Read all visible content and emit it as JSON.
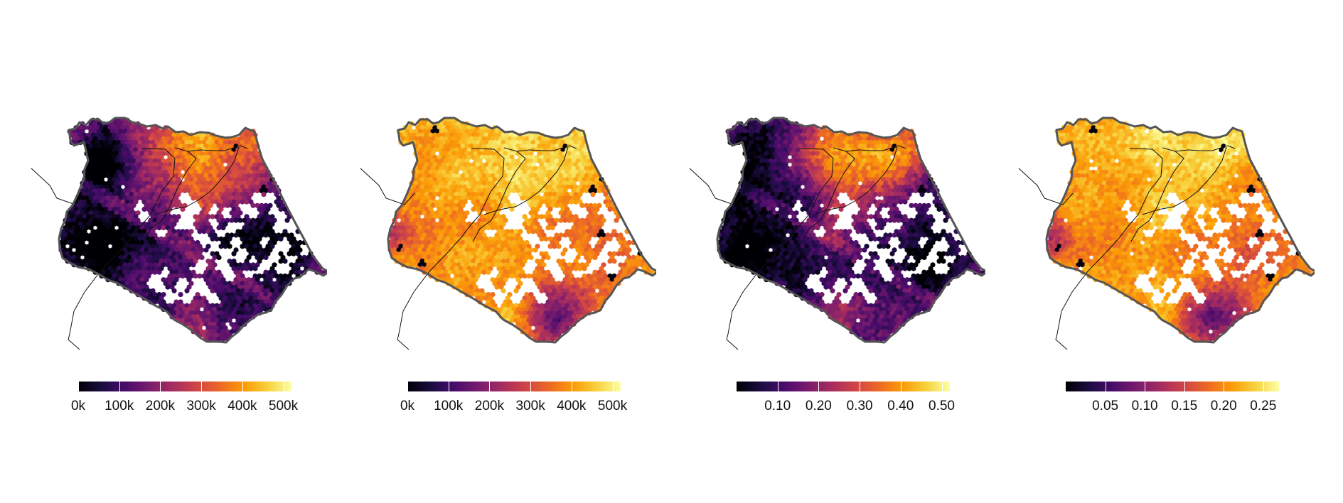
{
  "figure": {
    "panels": [
      {
        "id": "p1",
        "style": "low-center",
        "legend": {
          "labels": [
            "0k",
            "100k",
            "200k",
            "300k",
            "400k",
            "500k"
          ],
          "min": 0,
          "max": 520000,
          "values": [
            0,
            100000,
            200000,
            300000,
            400000,
            500000
          ]
        }
      },
      {
        "id": "p2",
        "style": "high",
        "legend": {
          "labels": [
            "0k",
            "100k",
            "200k",
            "300k",
            "400k",
            "500k"
          ],
          "min": 0,
          "max": 520000,
          "values": [
            0,
            100000,
            200000,
            300000,
            400000,
            500000
          ]
        }
      },
      {
        "id": "p3",
        "style": "low-center",
        "legend": {
          "labels": [
            "0.10",
            "0.20",
            "0.30",
            "0.40",
            "0.50"
          ],
          "min": 0.0,
          "max": 0.52,
          "values": [
            0.1,
            0.2,
            0.3,
            0.4,
            0.5
          ]
        }
      },
      {
        "id": "p4",
        "style": "high",
        "legend": {
          "labels": [
            "0.05",
            "0.10",
            "0.15",
            "0.20",
            "0.25"
          ],
          "min": 0.0,
          "max": 0.27,
          "values": [
            0.05,
            0.1,
            0.15,
            0.2,
            0.25
          ]
        }
      }
    ],
    "colorscale": {
      "name": "inferno",
      "stops": [
        "#000004",
        "#1b0c41",
        "#4a0c6b",
        "#781c6d",
        "#a52c60",
        "#cf4446",
        "#ed6925",
        "#fb9b06",
        "#f7d13d",
        "#fcffa4"
      ]
    },
    "region_outline_color": "#555555",
    "boundary_color": "#111111"
  }
}
